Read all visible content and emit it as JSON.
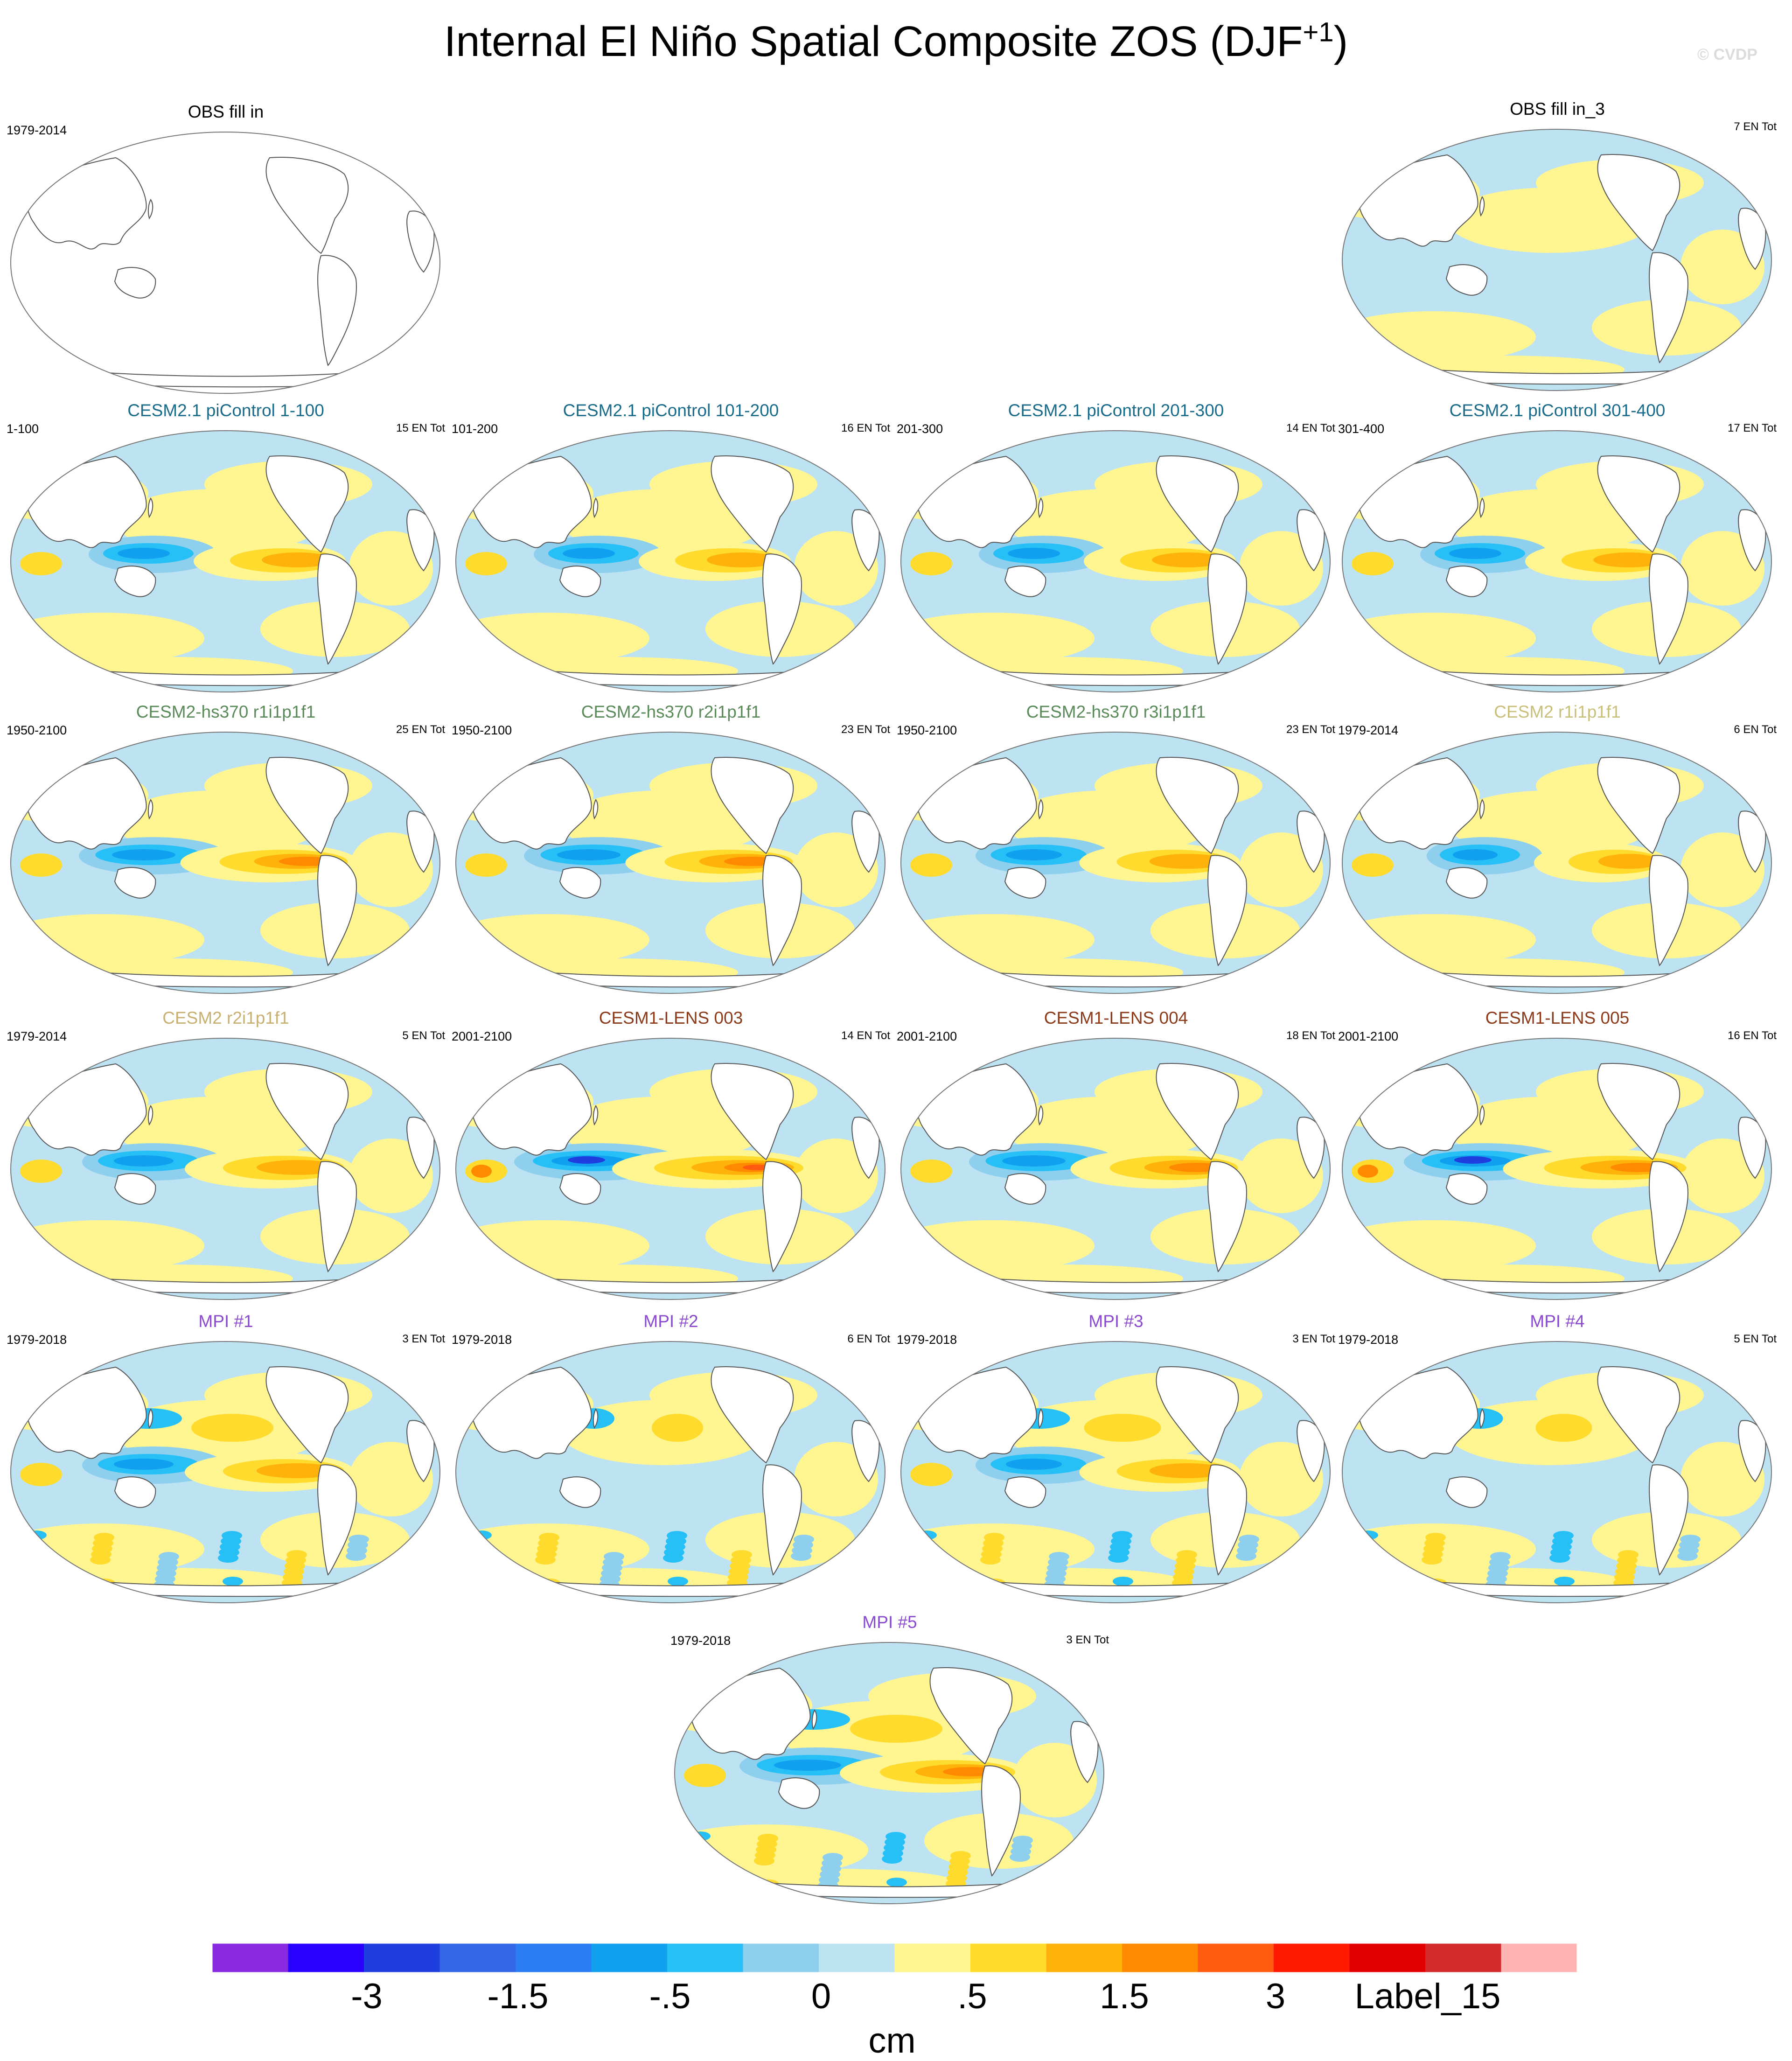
{
  "title": "Internal El Niño Spatial Composite ZOS (DJF",
  "title_sup": "+1",
  "title_end": ")",
  "credit": "© CVDP",
  "units": "cm",
  "colorbar": {
    "colors": [
      "#8a2be2",
      "#2a00ff",
      "#1f3ee0",
      "#3466e8",
      "#2a7df4",
      "#11a0f0",
      "#27c0f6",
      "#8fcfee",
      "#bde3f3",
      "#fff591",
      "#ffdb2e",
      "#ffb30a",
      "#ff8a00",
      "#ff5a10",
      "#ff1a00",
      "#e00000",
      "#d42a2a",
      "#ffb3b3"
    ],
    "labels": [
      "-3",
      "-1.5",
      "-.5",
      "0",
      ".5",
      "1.5",
      "3",
      "Label_15"
    ]
  },
  "panels": [
    {
      "id": "obs1",
      "title": "OBS fill in",
      "color": "#000000",
      "period": "1979-2014",
      "entot": "",
      "fill": "none",
      "intensity": 0
    },
    {
      "id": "obs3",
      "title": "OBS fill in_3",
      "color": "#000000",
      "period": "",
      "entot": "7 EN Tot",
      "fill": "weak",
      "intensity": 0.2
    },
    {
      "id": "pic1",
      "title": "CESM2.1 piControl 1-100",
      "color": "#1a6b8a",
      "period": "1-100",
      "entot": "15 EN Tot",
      "fill": "enso",
      "intensity": 0.7
    },
    {
      "id": "pic2",
      "title": "CESM2.1 piControl 101-200",
      "color": "#1a6b8a",
      "period": "101-200",
      "entot": "16 EN Tot",
      "fill": "enso",
      "intensity": 0.7
    },
    {
      "id": "pic3",
      "title": "CESM2.1 piControl 201-300",
      "color": "#1a6b8a",
      "period": "201-300",
      "entot": "14 EN Tot",
      "fill": "enso",
      "intensity": 0.7
    },
    {
      "id": "pic4",
      "title": "CESM2.1 piControl 301-400",
      "color": "#1a6b8a",
      "period": "301-400",
      "entot": "17 EN Tot",
      "fill": "enso",
      "intensity": 0.7
    },
    {
      "id": "hs1",
      "title": "CESM2-hs370 r1i1p1f1",
      "color": "#5a8a5a",
      "period": "1950-2100",
      "entot": "25 EN Tot",
      "fill": "enso",
      "intensity": 0.85
    },
    {
      "id": "hs2",
      "title": "CESM2-hs370 r2i1p1f1",
      "color": "#5a8a5a",
      "period": "1950-2100",
      "entot": "23 EN Tot",
      "fill": "enso",
      "intensity": 0.85
    },
    {
      "id": "hs3",
      "title": "CESM2-hs370 r3i1p1f1",
      "color": "#5a8a5a",
      "period": "1950-2100",
      "entot": "23 EN Tot",
      "fill": "enso",
      "intensity": 0.75
    },
    {
      "id": "c2r1",
      "title": "CESM2 r1i1p1f1",
      "color": "#c8c07a",
      "period": "1979-2014",
      "entot": "6 EN Tot",
      "fill": "enso",
      "intensity": 0.6
    },
    {
      "id": "c2r2",
      "title": "CESM2 r2i1p1f1",
      "color": "#c8b070",
      "period": "1979-2014",
      "entot": "5 EN Tot",
      "fill": "enso",
      "intensity": 0.8
    },
    {
      "id": "l3",
      "title": "CESM1-LENS 003",
      "color": "#8b3a1a",
      "period": "2001-2100",
      "entot": "14 EN Tot",
      "fill": "enso",
      "intensity": 1.0
    },
    {
      "id": "l4",
      "title": "CESM1-LENS 004",
      "color": "#8b3a1a",
      "period": "2001-2100",
      "entot": "18 EN Tot",
      "fill": "enso",
      "intensity": 0.85
    },
    {
      "id": "l5",
      "title": "CESM1-LENS 005",
      "color": "#8b3a1a",
      "period": "2001-2100",
      "entot": "16 EN Tot",
      "fill": "enso",
      "intensity": 0.95
    },
    {
      "id": "m1",
      "title": "MPI #1",
      "color": "#8a4ad0",
      "period": "1979-2018",
      "entot": "3 EN Tot",
      "fill": "noisy",
      "intensity": 0.8
    },
    {
      "id": "m2",
      "title": "MPI #2",
      "color": "#8a4ad0",
      "period": "1979-2018",
      "entot": "6 EN Tot",
      "fill": "noisy",
      "intensity": 0.5
    },
    {
      "id": "m3",
      "title": "MPI #3",
      "color": "#8a4ad0",
      "period": "1979-2018",
      "entot": "3 EN Tot",
      "fill": "noisy",
      "intensity": 0.75
    },
    {
      "id": "m4",
      "title": "MPI #4",
      "color": "#8a4ad0",
      "period": "1979-2018",
      "entot": "5 EN Tot",
      "fill": "noisy",
      "intensity": 0.55
    },
    {
      "id": "m5",
      "title": "MPI #5",
      "color": "#8a4ad0",
      "period": "1979-2018",
      "entot": "3 EN Tot",
      "fill": "noisy",
      "intensity": 0.9
    }
  ]
}
